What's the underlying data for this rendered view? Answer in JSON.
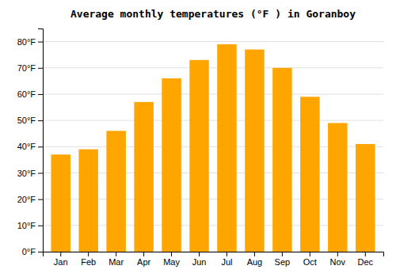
{
  "chart_data": {
    "type": "bar",
    "title": "Average monthly temperatures (°F ) in Goranboy",
    "categories": [
      "Jan",
      "Feb",
      "Mar",
      "Apr",
      "May",
      "Jun",
      "Jul",
      "Aug",
      "Sep",
      "Oct",
      "Nov",
      "Dec"
    ],
    "values": [
      37,
      39,
      46,
      57,
      66,
      73,
      79,
      77,
      70,
      59,
      49,
      41
    ],
    "color": "#FFA500",
    "ylim": [
      0,
      85
    ],
    "yticks": [
      {
        "value": 0,
        "label": "0°F"
      },
      {
        "value": 10,
        "label": "10°F"
      },
      {
        "value": 20,
        "label": "20°F"
      },
      {
        "value": 30,
        "label": "30°F"
      },
      {
        "value": 40,
        "label": "40°F"
      },
      {
        "value": 50,
        "label": "50°F"
      },
      {
        "value": 60,
        "label": "60°F"
      },
      {
        "value": 70,
        "label": "70°F"
      },
      {
        "value": 80,
        "label": "80°F"
      }
    ],
    "grid": true
  }
}
